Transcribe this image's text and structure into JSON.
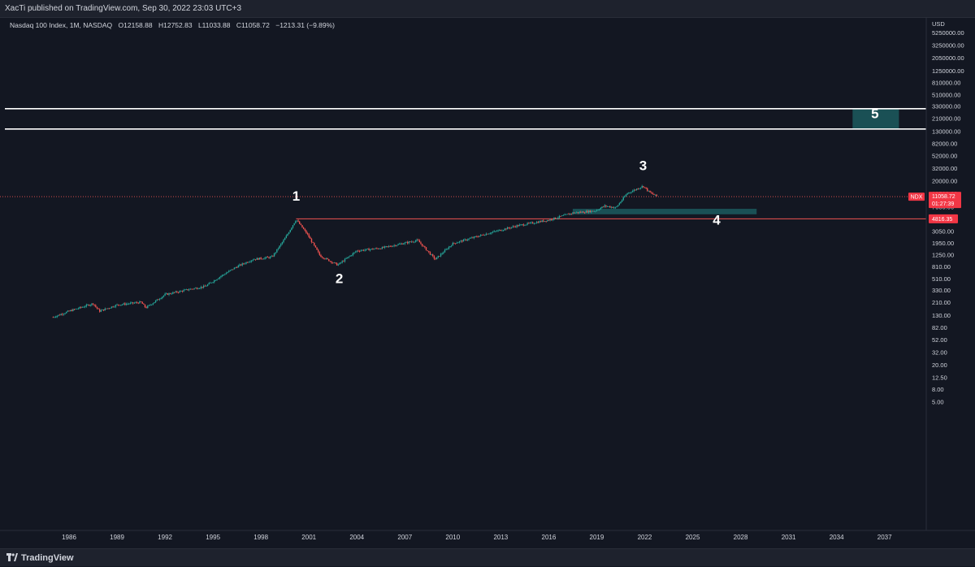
{
  "header": {
    "published": "XacTi published on TradingView.com, Sep 30, 2022 23:03 UTC+3"
  },
  "footer": {
    "brand": "TradingView",
    "logo_icon": "tradingview-logo-icon"
  },
  "colors": {
    "background": "#131722",
    "up": "#26a69a",
    "down": "#ef5350",
    "zone": "#1c5a5e",
    "tag": "#f23645",
    "level": "#ef5350"
  },
  "chart_data": {
    "type": "candlestick",
    "legend": {
      "symbol": "Nasdaq 100 Index, 1M, NASDAQ",
      "open": "O12158.88",
      "high": "H12752.83",
      "low": "L11033.88",
      "close": "C11058.72",
      "change": "−1213.31 (−9.89%)"
    },
    "y_axis": {
      "currency": "USD",
      "scale": "log",
      "ticks": [
        "5250000.00",
        "3250000.00",
        "2050000.00",
        "1250000.00",
        "810000.00",
        "510000.00",
        "330000.00",
        "210000.00",
        "130000.00",
        "82000.00",
        "52000.00",
        "32000.00",
        "20000.00",
        "12500.00",
        "7600.00",
        "3050.00",
        "1950.00",
        "1250.00",
        "810.00",
        "510.00",
        "330.00",
        "210.00",
        "130.00",
        "82.00",
        "52.00",
        "32.00",
        "20.00",
        "12.50",
        "8.00",
        "5.00"
      ]
    },
    "x_axis": {
      "ticks": [
        "1986",
        "1989",
        "1992",
        "1995",
        "1998",
        "2001",
        "2004",
        "2007",
        "2010",
        "2013",
        "2016",
        "2019",
        "2022",
        "2025",
        "2028",
        "2031",
        "2034",
        "2037"
      ]
    },
    "price_tag": {
      "symbol": "NDX",
      "price": "11058.72",
      "countdown": "01:27:39",
      "value": 11058.72
    },
    "level_tag": {
      "label": "4816.35",
      "value": 4816.35
    },
    "path": [
      {
        "year": 1985.0,
        "value": 120
      },
      {
        "year": 1986.0,
        "value": 150
      },
      {
        "year": 1987.5,
        "value": 200
      },
      {
        "year": 1987.9,
        "value": 150
      },
      {
        "year": 1989.0,
        "value": 190
      },
      {
        "year": 1990.5,
        "value": 210
      },
      {
        "year": 1990.8,
        "value": 170
      },
      {
        "year": 1992.0,
        "value": 280
      },
      {
        "year": 1993.5,
        "value": 340
      },
      {
        "year": 1994.5,
        "value": 380
      },
      {
        "year": 1995.5,
        "value": 560
      },
      {
        "year": 1996.5,
        "value": 800
      },
      {
        "year": 1997.5,
        "value": 1050
      },
      {
        "year": 1998.7,
        "value": 1150
      },
      {
        "year": 1999.5,
        "value": 2300
      },
      {
        "year": 2000.2,
        "value": 4700
      },
      {
        "year": 2000.9,
        "value": 2700
      },
      {
        "year": 2001.7,
        "value": 1200
      },
      {
        "year": 2002.8,
        "value": 850
      },
      {
        "year": 2004.0,
        "value": 1450
      },
      {
        "year": 2005.5,
        "value": 1600
      },
      {
        "year": 2007.8,
        "value": 2150
      },
      {
        "year": 2008.9,
        "value": 1050
      },
      {
        "year": 2010.0,
        "value": 1900
      },
      {
        "year": 2012.0,
        "value": 2700
      },
      {
        "year": 2014.0,
        "value": 3700
      },
      {
        "year": 2016.0,
        "value": 4600
      },
      {
        "year": 2017.5,
        "value": 6000
      },
      {
        "year": 2018.9,
        "value": 6500
      },
      {
        "year": 2019.5,
        "value": 7800
      },
      {
        "year": 2020.2,
        "value": 7300
      },
      {
        "year": 2020.9,
        "value": 12500
      },
      {
        "year": 2021.9,
        "value": 16500
      },
      {
        "year": 2022.3,
        "value": 13000
      },
      {
        "year": 2022.8,
        "value": 11058
      }
    ],
    "annotations": {
      "waves": [
        {
          "label": "1",
          "year": 2000.2,
          "value": 9500
        },
        {
          "label": "2",
          "year": 2002.9,
          "value": 430
        },
        {
          "label": "3",
          "year": 2021.9,
          "value": 30000
        },
        {
          "label": "4",
          "year": 2026.5,
          "value": 3850
        },
        {
          "label": "5",
          "year": 2036.4,
          "value": 210000
        }
      ],
      "horizontal_lines": [
        {
          "value": 300000,
          "color": "#ffffff"
        },
        {
          "value": 140000,
          "color": "#ffffff"
        },
        {
          "value": 4816.35,
          "color": "#ef5350",
          "from_year": 2000.2
        },
        {
          "value": 11058.72,
          "color": "#ef5350",
          "dotted": true
        }
      ],
      "zones": [
        {
          "name": "zone-4",
          "from_year": 2017.5,
          "to_year": 2029.0,
          "low": 5700,
          "high": 7000
        },
        {
          "name": "zone-5",
          "from_year": 2035.0,
          "to_year": 2037.9,
          "low": 140000,
          "high": 300000
        }
      ]
    }
  }
}
